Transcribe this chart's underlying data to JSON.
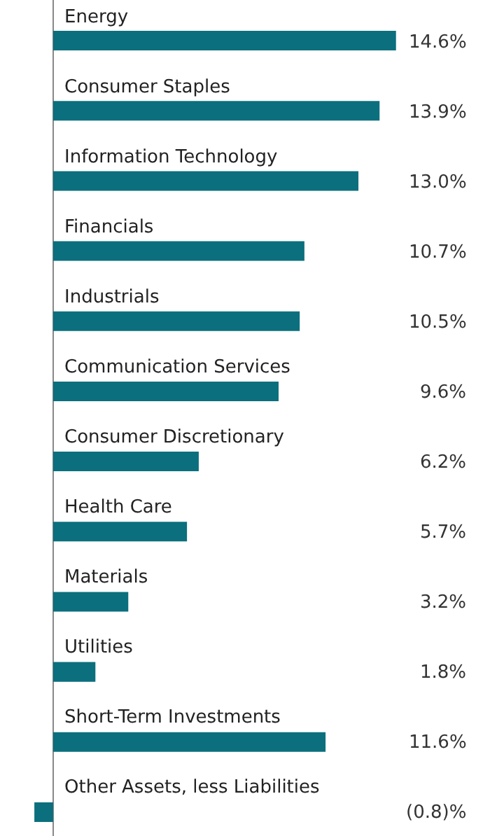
{
  "chart_data": {
    "type": "bar",
    "orientation": "horizontal",
    "categories": [
      "Energy",
      "Consumer Staples",
      "Information Technology",
      "Financials",
      "Industrials",
      "Communication Services",
      "Consumer Discretionary",
      "Health Care",
      "Materials",
      "Utilities",
      "Short-Term Investments",
      "Other Assets, less Liabilities"
    ],
    "values": [
      14.6,
      13.9,
      13.0,
      10.7,
      10.5,
      9.6,
      6.2,
      5.7,
      3.2,
      1.8,
      11.6,
      -0.8
    ],
    "value_labels": [
      "14.6%",
      "13.9%",
      "13.0%",
      "10.7%",
      "10.5%",
      "9.6%",
      "6.2%",
      "5.7%",
      "3.2%",
      "1.8%",
      "11.6%",
      "(0.8)%"
    ],
    "color": "#0b6f7d"
  }
}
